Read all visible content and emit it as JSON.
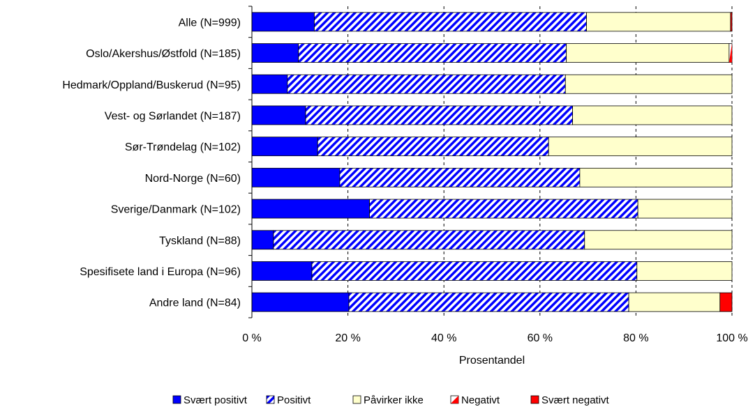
{
  "chart_data": {
    "type": "bar",
    "orientation": "horizontal",
    "stacked": "percent",
    "title": "",
    "xlabel": "Prosentandel",
    "ylabel": "",
    "xlim": [
      0,
      100
    ],
    "xticks": [
      "0 %",
      "20 %",
      "40 %",
      "60 %",
      "80 %",
      "100 %"
    ],
    "grid": "vertical dashed",
    "legend_position": "bottom",
    "categories": [
      "Alle (N=999)",
      "Oslo/Akershus/Østfold (N=185)",
      "Hedmark/Oppland/Buskerud (N=95)",
      "Vest- og Sørlandet (N=187)",
      "Sør-Trøndelag (N=102)",
      "Nord-Norge (N=60)",
      "Sverige/Danmark (N=102)",
      "Tyskland (N=88)",
      "Spesifisete land i Europa (N=96)",
      "Andre land (N=84)"
    ],
    "series": [
      {
        "name": "Svært positivt",
        "color": "#0000ff",
        "pattern": "solid",
        "values": [
          13,
          9.7,
          7.4,
          11.2,
          13.7,
          18.3,
          24.5,
          4.5,
          12.5,
          20.2
        ]
      },
      {
        "name": "Positivt",
        "color": "#0000ff",
        "pattern": "diagonal-hatch",
        "values": [
          56.7,
          55.8,
          57.9,
          55.6,
          48.1,
          50,
          55.9,
          64.8,
          67.7,
          58.3
        ]
      },
      {
        "name": "Påvirker ikke",
        "color": "#ffffcc",
        "pattern": "solid",
        "values": [
          30,
          33.9,
          34.7,
          33.2,
          38.2,
          31.7,
          19.6,
          30.7,
          19.8,
          19
        ]
      },
      {
        "name": "Negativt",
        "color": "#ff0000",
        "pattern": "diagonal-half",
        "values": [
          0,
          0.6,
          0,
          0,
          0,
          0,
          0,
          0,
          0,
          0
        ]
      },
      {
        "name": "Svært negativt",
        "color": "#ff0000",
        "pattern": "solid",
        "values": [
          0.3,
          0,
          0,
          0,
          0,
          0,
          0,
          0,
          0,
          2.5
        ]
      }
    ]
  }
}
